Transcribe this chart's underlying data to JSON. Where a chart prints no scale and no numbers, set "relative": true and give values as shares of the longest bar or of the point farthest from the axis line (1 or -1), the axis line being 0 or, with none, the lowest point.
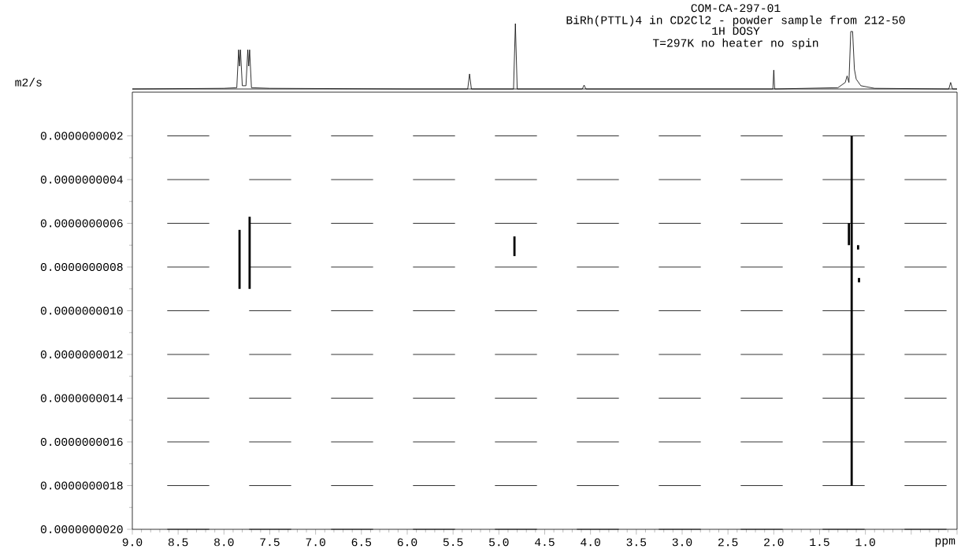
{
  "chart_data": [
    {
      "type": "line",
      "relative": true,
      "color": "#000000",
      "xlim": [
        9.0,
        0.0
      ],
      "tick_labels": false,
      "title": "COM-CA-297-01",
      "subtitle": "BiRh(PTTL)4 in CD2Cl2 - powder sample from 212-50",
      "annotations": [
        "1H DOSY",
        "T=297K no heater no spin"
      ],
      "x": [
        9.0,
        8.0,
        7.86,
        7.84,
        7.83,
        7.82,
        7.8,
        7.76,
        7.74,
        7.73,
        7.72,
        7.7,
        7.5,
        6.0,
        5.34,
        5.32,
        5.3,
        4.84,
        4.82,
        4.8,
        4.09,
        4.07,
        4.05,
        2.01,
        2.0,
        1.99,
        1.3,
        1.22,
        1.2,
        1.18,
        1.16,
        1.14,
        1.12,
        1.1,
        1.05,
        0.9,
        0.09,
        0.07,
        0.05,
        0.0
      ],
      "values": [
        0,
        0.01,
        0.02,
        0.6,
        0.35,
        0.6,
        0.05,
        0.05,
        0.6,
        0.35,
        0.6,
        0.02,
        0.01,
        0,
        0,
        0.23,
        0,
        0,
        1.0,
        0,
        0,
        0.06,
        0,
        0,
        0.29,
        0,
        0.02,
        0.1,
        0.2,
        0.1,
        0.88,
        0.88,
        0.3,
        0.15,
        0.05,
        0.01,
        0,
        0.1,
        0,
        0
      ]
    },
    {
      "type": "bar",
      "color": "#000000",
      "xlabel": "ppm",
      "ylabel": "m2/s",
      "grid": "y",
      "xlim": [
        9.0,
        0.0
      ],
      "ylim": [
        2e-09,
        0.0
      ],
      "xticks": [
        {
          "value": 9,
          "label": "9.0"
        },
        8.5,
        {
          "value": 8,
          "label": "8.0"
        },
        7.5,
        {
          "value": 7,
          "label": "7.0"
        },
        6.5,
        {
          "value": 6,
          "label": "6.0"
        },
        5.5,
        {
          "value": 5,
          "label": "5.0"
        },
        4.5,
        {
          "value": 4,
          "label": "4.0"
        },
        3.5,
        {
          "value": 3,
          "label": "3.0"
        },
        2.5,
        {
          "value": 2,
          "label": "2.0"
        },
        1.5,
        {
          "value": 1,
          "label": "1.0"
        },
        {
          "value": 0.5,
          "label": null
        },
        {
          "value": 0,
          "label": null
        }
      ],
      "yticks": [
        {
          "value": 2e-10,
          "label": "0.0000000002"
        },
        {
          "value": 4e-10,
          "label": "0.0000000004"
        },
        {
          "value": 6e-10,
          "label": "0.0000000006"
        },
        {
          "value": 8e-10,
          "label": "0.0000000008"
        },
        {
          "value": 1e-09,
          "label": "0.0000000010"
        },
        {
          "value": 1.2e-09,
          "label": "0.0000000012"
        },
        {
          "value": 1.4e-09,
          "label": "0.0000000014"
        },
        {
          "value": 1.6e-09,
          "label": "0.0000000016"
        },
        {
          "value": 1.8e-09,
          "label": "0.0000000018"
        },
        {
          "value": 2e-09,
          "label": "0.0000000020"
        }
      ],
      "x": [
        7.83,
        7.72,
        4.83,
        1.18,
        1.15,
        1.08,
        1.07
      ],
      "base": [
        6.3e-10,
        5.7e-10,
        6.6e-10,
        6e-10,
        2e-10,
        7e-10,
        8.5e-10
      ],
      "values": [
        2.7e-10,
        3.3e-10,
        9e-11,
        1e-10,
        1.6e-09,
        2e-11,
        2e-11
      ]
    }
  ]
}
